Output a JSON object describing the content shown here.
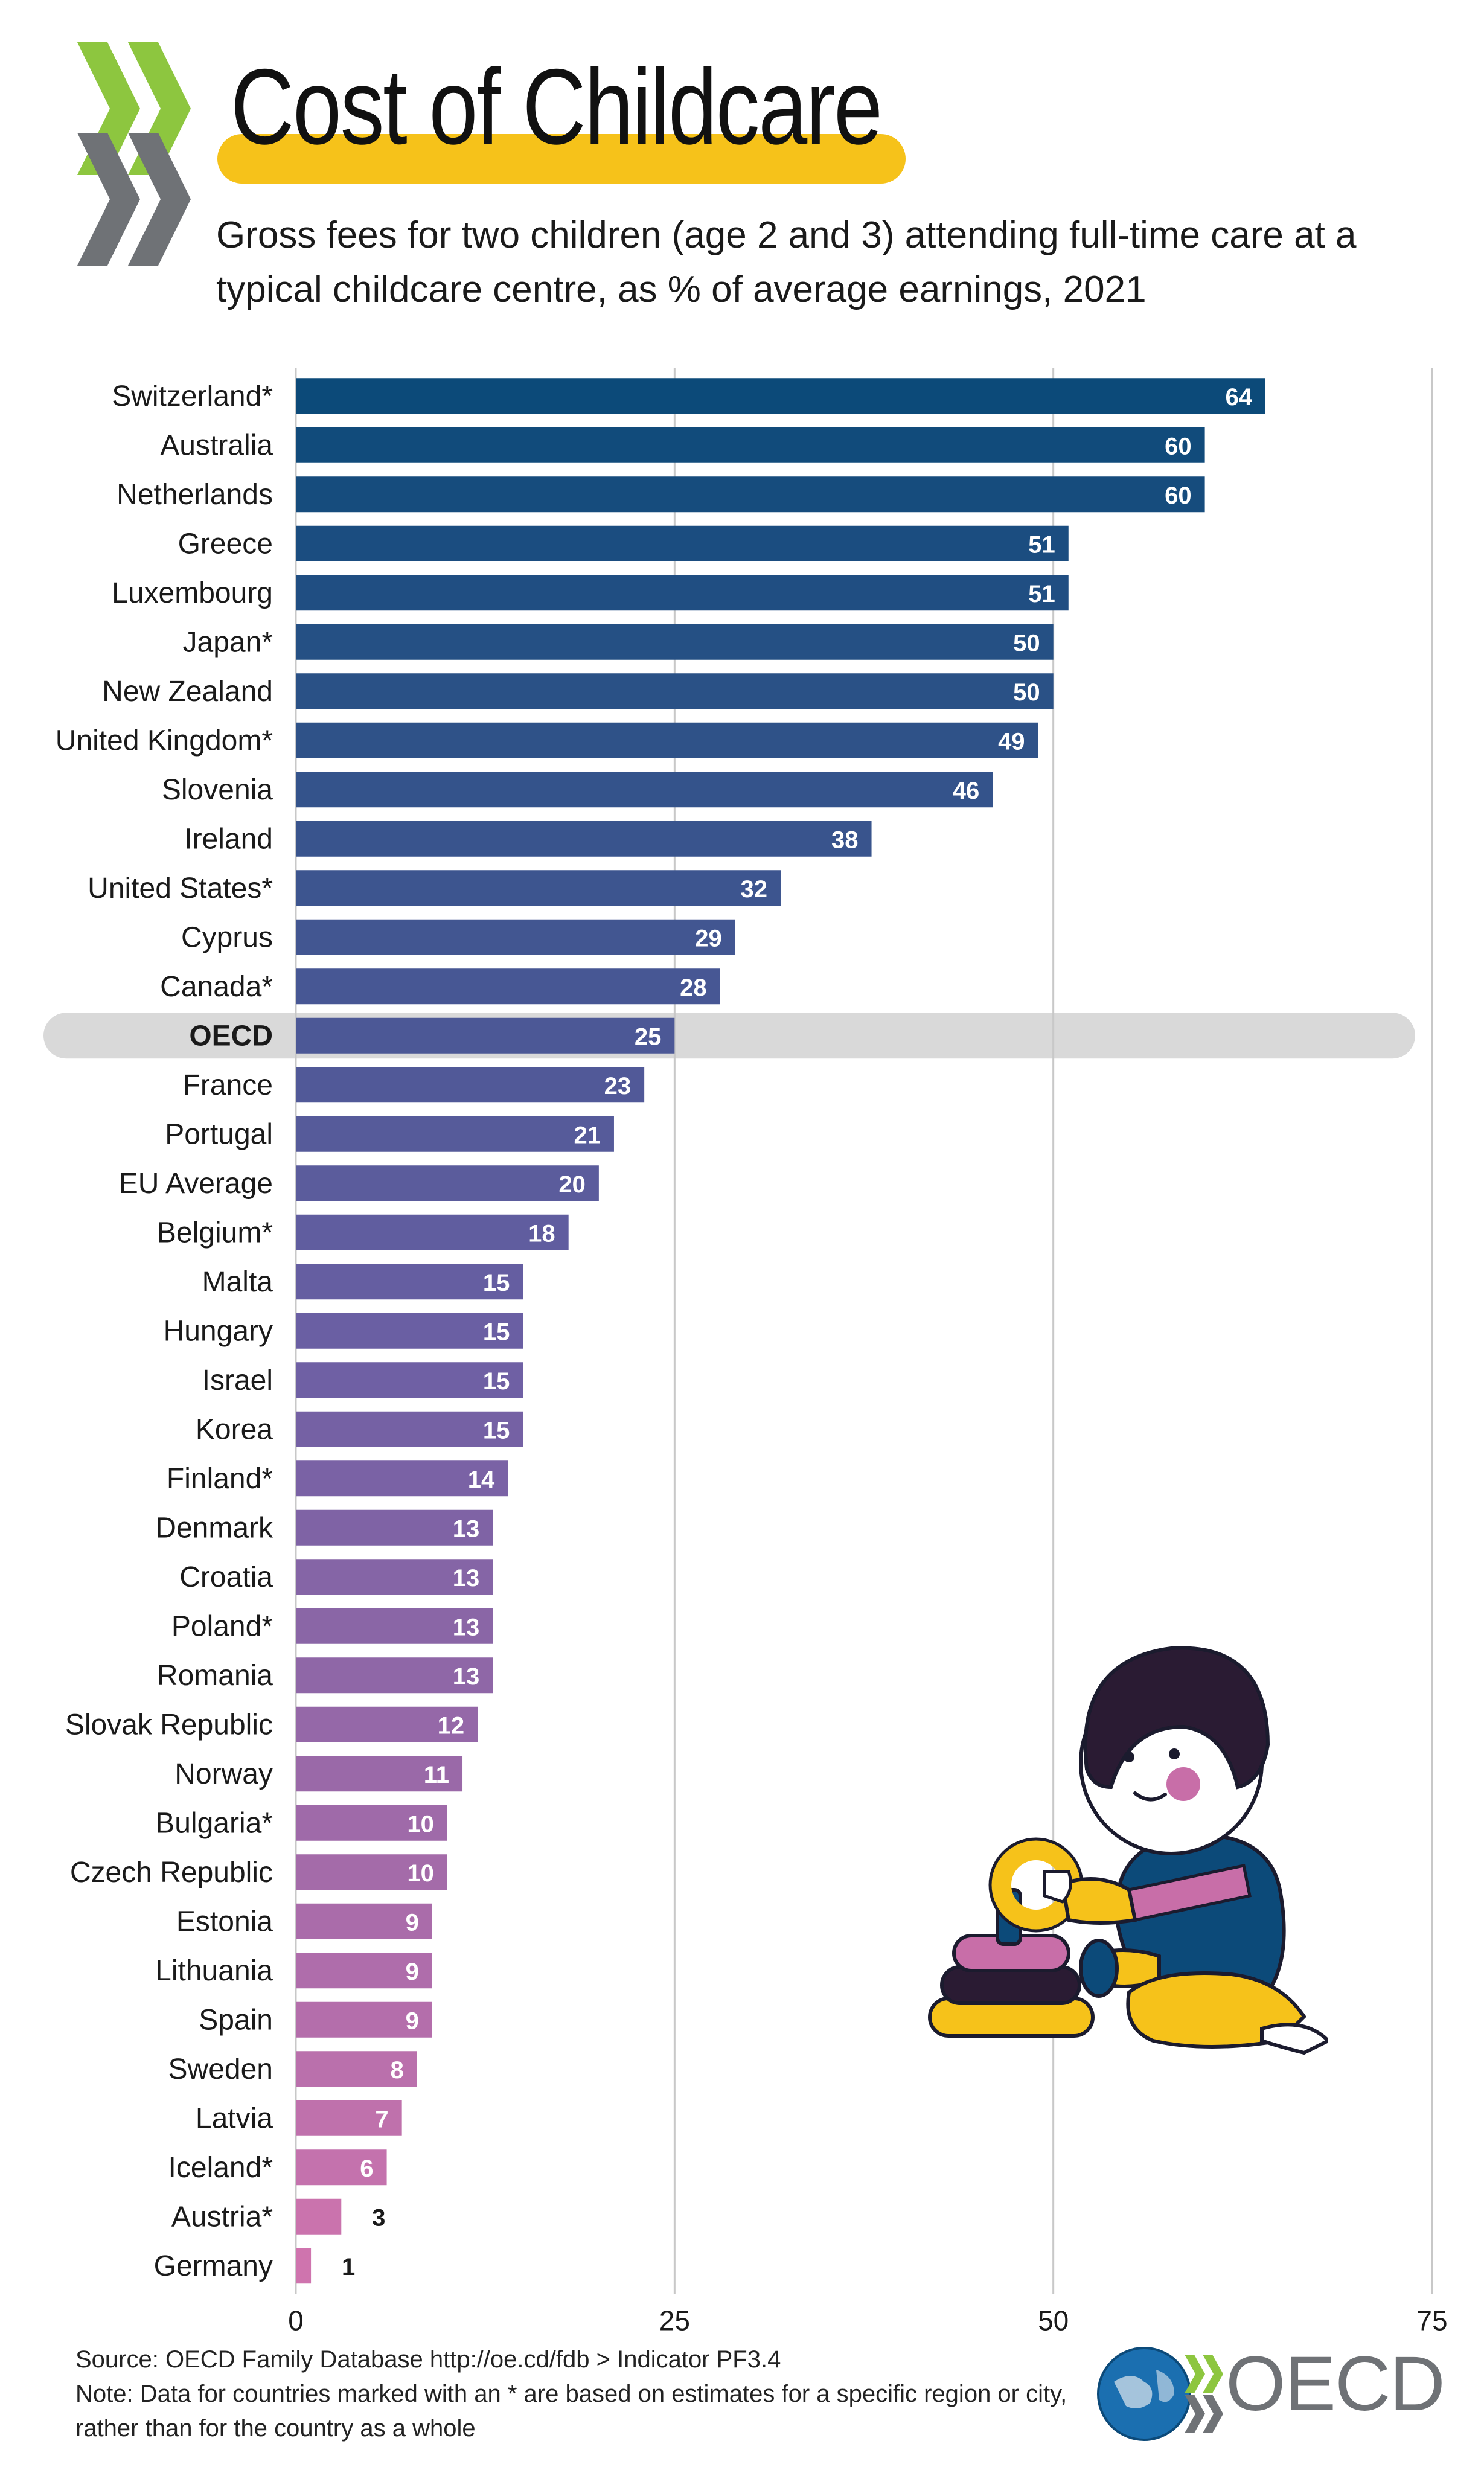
{
  "header": {
    "title": "Cost of Childcare",
    "subtitle": "Gross fees for two children (age 2 and 3) attending full-time care at a typical childcare centre, as % of average earnings, 2021"
  },
  "footer": {
    "source": "Source: OECD Family Database http://oe.cd/fdb > Indicator PF3.4",
    "note": "Note: Data for countries marked with an * are based on estimates for a specific region or city, rather than for the country as a whole",
    "logo_text": "OECD"
  },
  "colors": {
    "bar_top": "#0c4a79",
    "bar_mid": "#6a5fa3",
    "bar_bottom": "#cf74ae",
    "highlight_band": "#d9d9d9",
    "grid": "#c8c8c8",
    "title_bar": "#f6c21a",
    "logo_green": "#8dc63f",
    "logo_gray": "#6f7276"
  },
  "chart_data": {
    "type": "bar",
    "orientation": "horizontal",
    "title": "Cost of Childcare",
    "xlabel": "",
    "ylabel": "",
    "xlim": [
      0,
      75
    ],
    "xticks": [
      0,
      25,
      50,
      75
    ],
    "grid": true,
    "highlight": "OECD",
    "categories": [
      "Switzerland*",
      "Australia",
      "Netherlands",
      "Greece",
      "Luxembourg",
      "Japan*",
      "New Zealand",
      "United Kingdom*",
      "Slovenia",
      "Ireland",
      "United States*",
      "Cyprus",
      "Canada*",
      "OECD",
      "France",
      "Portugal",
      "EU Average",
      "Belgium*",
      "Malta",
      "Hungary",
      "Israel",
      "Korea",
      "Finland*",
      "Denmark",
      "Croatia",
      "Poland*",
      "Romania",
      "Slovak Republic",
      "Norway",
      "Bulgaria*",
      "Czech Republic",
      "Estonia",
      "Lithuania",
      "Spain",
      "Sweden",
      "Latvia",
      "Iceland*",
      "Austria*",
      "Germany"
    ],
    "values": [
      64,
      60,
      60,
      51,
      51,
      50,
      50,
      49,
      46,
      38,
      32,
      29,
      28,
      25,
      23,
      21,
      20,
      18,
      15,
      15,
      15,
      15,
      14,
      13,
      13,
      13,
      13,
      12,
      11,
      10,
      10,
      9,
      9,
      9,
      8,
      7,
      6,
      3,
      1
    ]
  }
}
